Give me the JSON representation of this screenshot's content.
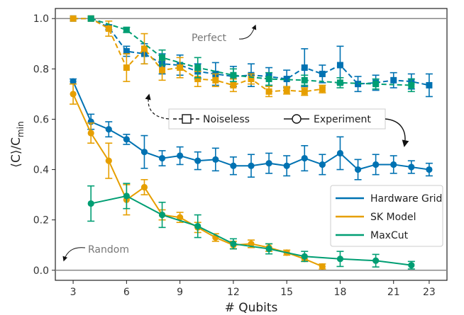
{
  "chart_data": {
    "type": "line",
    "xlabel": "# Qubits",
    "ylabel": "⟨C⟩/C",
    "ylabel_sub": "min",
    "xlim": [
      2,
      24
    ],
    "ylim": [
      -0.04,
      1.04
    ],
    "xticks": [
      3,
      6,
      9,
      12,
      15,
      18,
      21,
      23
    ],
    "yticks": [
      0.0,
      0.2,
      0.4,
      0.6,
      0.8,
      1.0
    ],
    "ytick_labels": [
      "0.0",
      "0.2",
      "0.4",
      "0.6",
      "0.8",
      "1.0"
    ],
    "reference_lines": [
      {
        "label": "Perfect",
        "y": 1.0
      },
      {
        "label": "Random",
        "y": 0.0
      }
    ],
    "style_legend": {
      "noiseless": "Noiseless",
      "experiment": "Experiment"
    },
    "legend_position": "center-right",
    "grid": false,
    "series": [
      {
        "name": "Hardware Grid",
        "color": "#0072B2",
        "experiment": {
          "x": [
            3,
            4,
            5,
            6,
            7,
            8,
            9,
            10,
            11,
            12,
            13,
            14,
            15,
            16,
            17,
            18,
            19,
            20,
            21,
            22,
            23
          ],
          "y": [
            0.75,
            0.59,
            0.56,
            0.52,
            0.47,
            0.445,
            0.455,
            0.435,
            0.44,
            0.415,
            0.415,
            0.425,
            0.415,
            0.445,
            0.42,
            0.465,
            0.4,
            0.42,
            0.42,
            0.41,
            0.4
          ],
          "err": [
            0.01,
            0.03,
            0.03,
            0.02,
            0.065,
            0.03,
            0.035,
            0.035,
            0.045,
            0.035,
            0.045,
            0.04,
            0.04,
            0.05,
            0.04,
            0.065,
            0.04,
            0.04,
            0.035,
            0.025,
            0.025
          ]
        },
        "noiseless": {
          "x": [
            3,
            4,
            5,
            6,
            7,
            8,
            9,
            10,
            11,
            12,
            13,
            14,
            15,
            16,
            17,
            18,
            19,
            20,
            21,
            22,
            23
          ],
          "y": [
            1.0,
            1.0,
            0.965,
            0.87,
            0.86,
            0.82,
            0.815,
            0.79,
            0.78,
            0.77,
            0.775,
            0.77,
            0.76,
            0.805,
            0.78,
            0.815,
            0.74,
            0.745,
            0.755,
            0.75,
            0.735
          ],
          "err": [
            0.0,
            0.0,
            0.01,
            0.02,
            0.04,
            0.04,
            0.04,
            0.03,
            0.045,
            0.04,
            0.045,
            0.035,
            0.035,
            0.075,
            0.035,
            0.075,
            0.03,
            0.03,
            0.03,
            0.03,
            0.045
          ]
        }
      },
      {
        "name": "SK Model",
        "color": "#E69F00",
        "experiment": {
          "x": [
            3,
            4,
            5,
            6,
            7,
            8,
            9,
            10,
            11,
            12,
            13,
            14,
            15,
            16,
            17
          ],
          "y": [
            0.7,
            0.545,
            0.435,
            0.28,
            0.33,
            0.22,
            0.21,
            0.17,
            0.13,
            0.1,
            0.105,
            0.09,
            0.07,
            0.045,
            0.015
          ],
          "err": [
            0.04,
            0.04,
            0.07,
            0.06,
            0.03,
            0.02,
            0.02,
            0.02,
            0.015,
            0.015,
            0.015,
            0.015,
            0.01,
            0.01,
            0.01
          ]
        },
        "noiseless": {
          "x": [
            3,
            4,
            5,
            6,
            7,
            8,
            9,
            10,
            11,
            12,
            13,
            14,
            15,
            16,
            17
          ],
          "y": [
            1.0,
            1.0,
            0.96,
            0.805,
            0.88,
            0.795,
            0.805,
            0.76,
            0.755,
            0.735,
            0.76,
            0.71,
            0.715,
            0.71,
            0.72
          ],
          "err": [
            0.0,
            0.0,
            0.03,
            0.055,
            0.06,
            0.04,
            0.04,
            0.03,
            0.025,
            0.025,
            0.02,
            0.02,
            0.015,
            0.015,
            0.015
          ]
        }
      },
      {
        "name": "MaxCut",
        "color": "#009E73",
        "experiment": {
          "x": [
            4,
            6,
            8,
            10,
            12,
            14,
            16,
            18,
            20,
            22
          ],
          "y": [
            0.265,
            0.295,
            0.22,
            0.175,
            0.105,
            0.085,
            0.055,
            0.045,
            0.038,
            0.02
          ],
          "err": [
            0.07,
            0.05,
            0.05,
            0.045,
            0.02,
            0.02,
            0.02,
            0.03,
            0.025,
            0.015
          ]
        },
        "noiseless": {
          "x": [
            4,
            6,
            8,
            10,
            12,
            14,
            16,
            18,
            20,
            22
          ],
          "y": [
            1.0,
            0.955,
            0.845,
            0.805,
            0.775,
            0.76,
            0.755,
            0.745,
            0.74,
            0.735
          ],
          "err": [
            0.0,
            0.01,
            0.03,
            0.04,
            0.025,
            0.025,
            0.02,
            0.02,
            0.02,
            0.025
          ]
        }
      }
    ]
  }
}
